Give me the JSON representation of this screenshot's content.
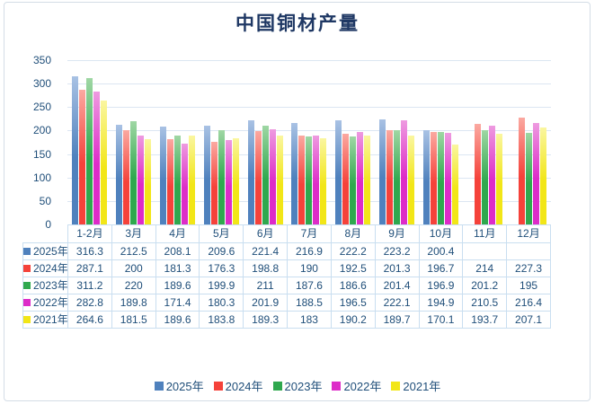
{
  "chart_data": {
    "type": "bar",
    "title": "中国铜材产量",
    "categories": [
      "1-2月",
      "3月",
      "4月",
      "5月",
      "6月",
      "7月",
      "8月",
      "9月",
      "10月",
      "11月",
      "12月"
    ],
    "series": [
      {
        "name": "2025年",
        "color": "#4f81bd",
        "color_light": "#a9c2e4",
        "values": [
          316.3,
          212.5,
          208.1,
          209.6,
          221.4,
          216.9,
          222.2,
          223.2,
          200.4,
          null,
          null
        ]
      },
      {
        "name": "2024年",
        "color": "#f5423a",
        "color_light": "#fba9a1",
        "values": [
          287.1,
          200,
          181.3,
          176.3,
          198.8,
          190,
          192.5,
          201.3,
          196.7,
          214,
          227.3
        ]
      },
      {
        "name": "2023年",
        "color": "#2fa84e",
        "color_light": "#9fd7a4",
        "values": [
          311.2,
          220,
          189.6,
          199.9,
          211,
          187.6,
          186.6,
          201.4,
          196.9,
          201.2,
          195
        ]
      },
      {
        "name": "2022年",
        "color": "#dd2cc8",
        "color_light": "#ee9be0",
        "values": [
          282.8,
          189.8,
          171.4,
          180.3,
          201.9,
          188.5,
          196.5,
          222.1,
          194.9,
          210.5,
          216.4
        ]
      },
      {
        "name": "2021年",
        "color": "#f2e617",
        "color_light": "#faf6a0",
        "values": [
          264.6,
          181.5,
          189.6,
          183.8,
          189.3,
          183,
          190.2,
          189.7,
          170.1,
          193.7,
          207.1
        ]
      }
    ],
    "ylim": [
      0,
      350
    ],
    "yticks": [
      0,
      50,
      100,
      150,
      200,
      250,
      300,
      350
    ],
    "grid": true,
    "legend_position": "bottom",
    "show_data_table": true,
    "text_color": "#1f4e79",
    "title_color": "#1f3864",
    "gridline_color": "#dce6f2",
    "table_border_color": "#c9def0"
  }
}
